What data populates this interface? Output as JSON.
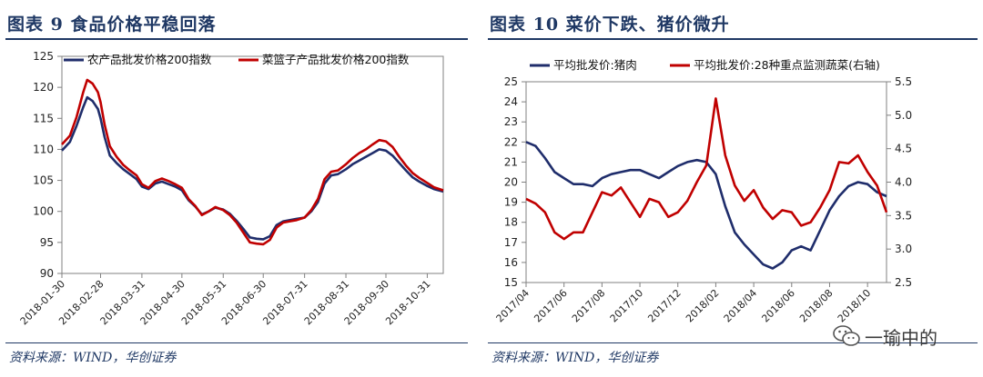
{
  "left": {
    "title": "图表 9    食品价格平稳回落",
    "source": "资料来源：WIND，华创证券",
    "colors": {
      "series1": "#1f2d6b",
      "series2": "#c00000",
      "axis": "#808080"
    }
  },
  "right": {
    "title": "图表 10    菜价下跌、猪价微升",
    "source": "资料来源：WIND，华创证券",
    "colors": {
      "series1": "#1f2d6b",
      "series2": "#c00000",
      "axis": "#808080"
    }
  },
  "watermark": {
    "text": "一瑜中的",
    "icon": "wechat-icon"
  },
  "chart_data": [
    {
      "type": "line",
      "title": "",
      "xlabel": "",
      "ylabel": "",
      "ylim": [
        90,
        125
      ],
      "yticks": [
        90,
        95,
        100,
        105,
        110,
        115,
        120,
        125
      ],
      "xlim": [
        "2018-01-30",
        "2018-11-12"
      ],
      "xticks": [
        "2018-01-30",
        "2018-02-28",
        "2018-03-31",
        "2018-04-30",
        "2018-05-31",
        "2018-06-30",
        "2018-07-31",
        "2018-08-31",
        "2018-09-30",
        "2018-10-31"
      ],
      "grid": false,
      "legend": "top",
      "series": [
        {
          "name": "农产品批发价格200指数",
          "points": [
            [
              "2018-01-30",
              109.8
            ],
            [
              "2018-02-05",
              111.2
            ],
            [
              "2018-02-10",
              113.8
            ],
            [
              "2018-02-15",
              116.8
            ],
            [
              "2018-02-18",
              118.4
            ],
            [
              "2018-02-22",
              117.8
            ],
            [
              "2018-02-26",
              116.5
            ],
            [
              "2018-02-28",
              115.0
            ],
            [
              "2018-03-03",
              112.0
            ],
            [
              "2018-03-07",
              109.0
            ],
            [
              "2018-03-12",
              107.8
            ],
            [
              "2018-03-17",
              106.8
            ],
            [
              "2018-03-22",
              106.0
            ],
            [
              "2018-03-27",
              105.2
            ],
            [
              "2018-03-31",
              104.0
            ],
            [
              "2018-04-05",
              103.6
            ],
            [
              "2018-04-10",
              104.5
            ],
            [
              "2018-04-15",
              104.8
            ],
            [
              "2018-04-20",
              104.4
            ],
            [
              "2018-04-25",
              104.0
            ],
            [
              "2018-04-30",
              103.4
            ],
            [
              "2018-05-05",
              101.8
            ],
            [
              "2018-05-10",
              100.8
            ],
            [
              "2018-05-15",
              99.5
            ],
            [
              "2018-05-20",
              100.0
            ],
            [
              "2018-05-25",
              100.6
            ],
            [
              "2018-05-31",
              100.3
            ],
            [
              "2018-06-05",
              99.6
            ],
            [
              "2018-06-10",
              98.5
            ],
            [
              "2018-06-15",
              97.2
            ],
            [
              "2018-06-20",
              95.8
            ],
            [
              "2018-06-25",
              95.6
            ],
            [
              "2018-06-30",
              95.5
            ],
            [
              "2018-07-05",
              96.0
            ],
            [
              "2018-07-10",
              97.8
            ],
            [
              "2018-07-15",
              98.4
            ],
            [
              "2018-07-20",
              98.6
            ],
            [
              "2018-07-25",
              98.8
            ],
            [
              "2018-07-31",
              99.0
            ],
            [
              "2018-08-05",
              100.0
            ],
            [
              "2018-08-10",
              101.5
            ],
            [
              "2018-08-15",
              104.5
            ],
            [
              "2018-08-20",
              105.8
            ],
            [
              "2018-08-25",
              106.0
            ],
            [
              "2018-08-31",
              106.8
            ],
            [
              "2018-09-05",
              107.6
            ],
            [
              "2018-09-10",
              108.2
            ],
            [
              "2018-09-15",
              108.8
            ],
            [
              "2018-09-20",
              109.4
            ],
            [
              "2018-09-25",
              110.0
            ],
            [
              "2018-09-30",
              109.8
            ],
            [
              "2018-10-05",
              109.0
            ],
            [
              "2018-10-10",
              107.8
            ],
            [
              "2018-10-15",
              106.6
            ],
            [
              "2018-10-20",
              105.5
            ],
            [
              "2018-10-25",
              104.8
            ],
            [
              "2018-10-31",
              104.1
            ],
            [
              "2018-11-05",
              103.6
            ],
            [
              "2018-11-12",
              103.2
            ]
          ]
        },
        {
          "name": "菜篮子产品批发价格200指数",
          "points": [
            [
              "2018-01-30",
              110.8
            ],
            [
              "2018-02-05",
              112.2
            ],
            [
              "2018-02-10",
              115.2
            ],
            [
              "2018-02-15",
              119.2
            ],
            [
              "2018-02-18",
              121.2
            ],
            [
              "2018-02-22",
              120.6
            ],
            [
              "2018-02-26",
              119.2
            ],
            [
              "2018-02-28",
              117.6
            ],
            [
              "2018-03-03",
              114.0
            ],
            [
              "2018-03-07",
              110.5
            ],
            [
              "2018-03-12",
              108.8
            ],
            [
              "2018-03-17",
              107.5
            ],
            [
              "2018-03-22",
              106.6
            ],
            [
              "2018-03-27",
              105.8
            ],
            [
              "2018-03-31",
              104.4
            ],
            [
              "2018-04-05",
              103.8
            ],
            [
              "2018-04-10",
              104.9
            ],
            [
              "2018-04-15",
              105.3
            ],
            [
              "2018-04-20",
              104.9
            ],
            [
              "2018-04-25",
              104.4
            ],
            [
              "2018-04-30",
              103.8
            ],
            [
              "2018-05-05",
              102.0
            ],
            [
              "2018-05-10",
              100.9
            ],
            [
              "2018-05-15",
              99.4
            ],
            [
              "2018-05-20",
              100.0
            ],
            [
              "2018-05-25",
              100.7
            ],
            [
              "2018-05-31",
              100.2
            ],
            [
              "2018-06-05",
              99.4
            ],
            [
              "2018-06-10",
              98.2
            ],
            [
              "2018-06-15",
              96.6
            ],
            [
              "2018-06-20",
              95.0
            ],
            [
              "2018-06-25",
              94.8
            ],
            [
              "2018-06-30",
              94.7
            ],
            [
              "2018-07-05",
              95.4
            ],
            [
              "2018-07-10",
              97.4
            ],
            [
              "2018-07-15",
              98.2
            ],
            [
              "2018-07-20",
              98.4
            ],
            [
              "2018-07-25",
              98.6
            ],
            [
              "2018-07-31",
              99.0
            ],
            [
              "2018-08-05",
              100.2
            ],
            [
              "2018-08-10",
              102.0
            ],
            [
              "2018-08-15",
              105.2
            ],
            [
              "2018-08-20",
              106.4
            ],
            [
              "2018-08-25",
              106.6
            ],
            [
              "2018-08-31",
              107.6
            ],
            [
              "2018-09-05",
              108.6
            ],
            [
              "2018-09-10",
              109.4
            ],
            [
              "2018-09-15",
              110.0
            ],
            [
              "2018-09-20",
              110.8
            ],
            [
              "2018-09-25",
              111.5
            ],
            [
              "2018-09-30",
              111.3
            ],
            [
              "2018-10-05",
              110.4
            ],
            [
              "2018-10-10",
              108.8
            ],
            [
              "2018-10-15",
              107.4
            ],
            [
              "2018-10-20",
              106.2
            ],
            [
              "2018-10-25",
              105.4
            ],
            [
              "2018-10-31",
              104.6
            ],
            [
              "2018-11-05",
              103.9
            ],
            [
              "2018-11-12",
              103.4
            ]
          ]
        }
      ]
    },
    {
      "type": "line",
      "title": "",
      "xlabel": "",
      "ylabel": "",
      "ylim": [
        15,
        25
      ],
      "yticks": [
        15,
        16,
        17,
        18,
        19,
        20,
        21,
        22,
        23,
        24,
        25
      ],
      "y2lim": [
        2.5,
        5.5
      ],
      "y2ticks": [
        2.5,
        3.0,
        3.5,
        4.0,
        4.5,
        5.0,
        5.5
      ],
      "xlim": [
        "2017/04",
        "2018/11"
      ],
      "xticks": [
        "2017/04",
        "2017/06",
        "2017/08",
        "2017/10",
        "2017/12",
        "2018/02",
        "2018/04",
        "2018/06",
        "2018/08",
        "2018/10"
      ],
      "grid": false,
      "legend": "top",
      "series": [
        {
          "name": "平均批发价:猪肉",
          "axis": "left",
          "points": [
            [
              "2017/04",
              22.0
            ],
            [
              "2017/04.5",
              21.8
            ],
            [
              "2017/05",
              21.2
            ],
            [
              "2017/05.5",
              20.5
            ],
            [
              "2017/06",
              20.2
            ],
            [
              "2017/06.5",
              19.9
            ],
            [
              "2017/07",
              19.9
            ],
            [
              "2017/07.5",
              19.8
            ],
            [
              "2017/08",
              20.2
            ],
            [
              "2017/08.5",
              20.4
            ],
            [
              "2017/09",
              20.5
            ],
            [
              "2017/09.5",
              20.6
            ],
            [
              "2017/10",
              20.6
            ],
            [
              "2017/10.5",
              20.4
            ],
            [
              "2017/11",
              20.2
            ],
            [
              "2017/11.5",
              20.5
            ],
            [
              "2017/12",
              20.8
            ],
            [
              "2017/12.5",
              21.0
            ],
            [
              "2018/01",
              21.1
            ],
            [
              "2018/01.5",
              21.0
            ],
            [
              "2018/02",
              20.4
            ],
            [
              "2018/02.5",
              18.8
            ],
            [
              "2018/03",
              17.5
            ],
            [
              "2018/03.5",
              16.9
            ],
            [
              "2018/04",
              16.4
            ],
            [
              "2018/04.5",
              15.9
            ],
            [
              "2018/05",
              15.7
            ],
            [
              "2018/05.5",
              16.0
            ],
            [
              "2018/06",
              16.6
            ],
            [
              "2018/06.5",
              16.8
            ],
            [
              "2018/07",
              16.6
            ],
            [
              "2018/07.5",
              17.6
            ],
            [
              "2018/08",
              18.6
            ],
            [
              "2018/08.5",
              19.3
            ],
            [
              "2018/09",
              19.8
            ],
            [
              "2018/09.5",
              20.0
            ],
            [
              "2018/10",
              19.9
            ],
            [
              "2018/10.5",
              19.5
            ],
            [
              "2018/11",
              19.3
            ]
          ]
        },
        {
          "name": "平均批发价:28种重点监测蔬菜(右轴)",
          "axis": "right",
          "points": [
            [
              "2017/04",
              3.75
            ],
            [
              "2017/04.5",
              3.68
            ],
            [
              "2017/05",
              3.55
            ],
            [
              "2017/05.5",
              3.25
            ],
            [
              "2017/06",
              3.15
            ],
            [
              "2017/06.5",
              3.25
            ],
            [
              "2017/07",
              3.25
            ],
            [
              "2017/07.5",
              3.55
            ],
            [
              "2017/08",
              3.85
            ],
            [
              "2017/08.5",
              3.8
            ],
            [
              "2017/09",
              3.92
            ],
            [
              "2017/09.5",
              3.7
            ],
            [
              "2017/10",
              3.48
            ],
            [
              "2017/10.5",
              3.75
            ],
            [
              "2017/11",
              3.7
            ],
            [
              "2017/11.5",
              3.48
            ],
            [
              "2017/12",
              3.55
            ],
            [
              "2017/12.5",
              3.72
            ],
            [
              "2018/01",
              4.0
            ],
            [
              "2018/01.5",
              4.25
            ],
            [
              "2018/02",
              5.25
            ],
            [
              "2018/02.5",
              4.4
            ],
            [
              "2018/03",
              3.95
            ],
            [
              "2018/03.5",
              3.72
            ],
            [
              "2018/04",
              3.88
            ],
            [
              "2018/04.5",
              3.62
            ],
            [
              "2018/05",
              3.45
            ],
            [
              "2018/05.5",
              3.58
            ],
            [
              "2018/06",
              3.55
            ],
            [
              "2018/06.5",
              3.35
            ],
            [
              "2018/07",
              3.4
            ],
            [
              "2018/07.5",
              3.62
            ],
            [
              "2018/08",
              3.88
            ],
            [
              "2018/08.5",
              4.3
            ],
            [
              "2018/09",
              4.28
            ],
            [
              "2018/09.5",
              4.4
            ],
            [
              "2018/10",
              4.15
            ],
            [
              "2018/10.5",
              3.95
            ],
            [
              "2018/11",
              3.55
            ]
          ]
        }
      ]
    }
  ]
}
